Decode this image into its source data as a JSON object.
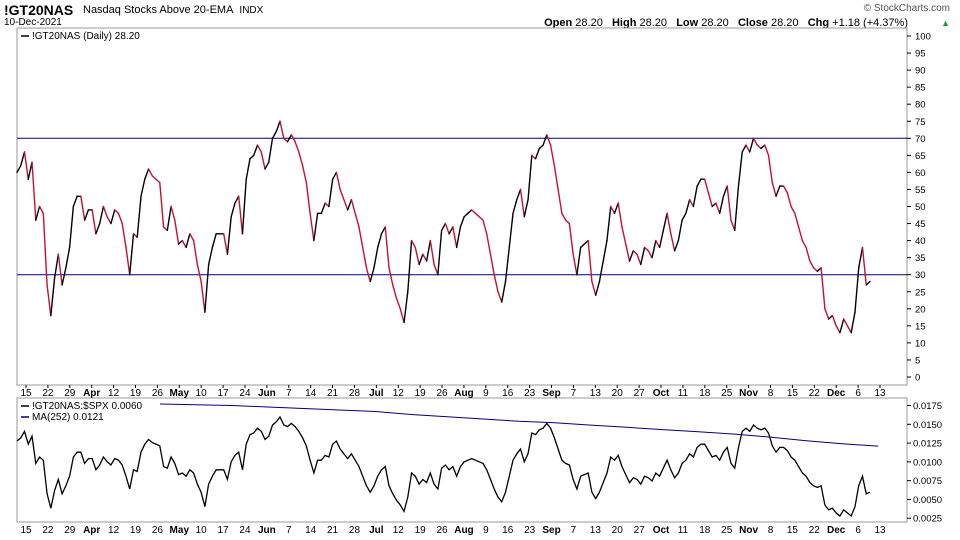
{
  "header": {
    "symbol": "!GT20NAS",
    "description": "Nasdaq Stocks Above 20-EMA",
    "exchange": "INDX",
    "date": "10-Dec-2021",
    "watermark": "© StockCharts.com",
    "open_label": "Open",
    "open": "28.20",
    "high_label": "High",
    "high": "28.20",
    "low_label": "Low",
    "low": "28.20",
    "close_label": "Close",
    "close": "28.20",
    "chg_label": "Chg",
    "chg": "+1.18 (+4.37%)"
  },
  "chart_data": [
    {
      "type": "line",
      "legend": "!GT20NAS (Daily) 28.20",
      "ylim": [
        0,
        100
      ],
      "yticks": [
        0,
        5,
        10,
        15,
        20,
        25,
        30,
        35,
        40,
        45,
        50,
        55,
        60,
        65,
        70,
        75,
        80,
        85,
        90,
        95,
        100
      ],
      "reference_lines": [
        70,
        30
      ],
      "colors": {
        "up": "#000000",
        "down": "#c8102e",
        "reference": "#000080"
      },
      "x_tick_labels": [
        "15",
        "22",
        "29",
        "Apr",
        "12",
        "19",
        "26",
        "May",
        "10",
        "17",
        "24",
        "Jun",
        "7",
        "14",
        "21",
        "28",
        "Jul",
        "12",
        "19",
        "26",
        "Aug",
        "9",
        "16",
        "23",
        "Sep",
        "7",
        "13",
        "20",
        "27",
        "Oct",
        "11",
        "18",
        "25",
        "Nov",
        "8",
        "15",
        "22",
        "Dec",
        "6",
        "13"
      ],
      "x_tick_bold": [
        "Apr",
        "May",
        "Jun",
        "Jul",
        "Aug",
        "Sep",
        "Oct",
        "Nov",
        "Dec"
      ],
      "values": [
        60,
        62,
        66,
        58,
        63,
        46,
        50,
        48,
        27,
        18,
        29,
        36,
        27,
        32,
        38,
        50,
        53,
        53,
        46,
        49,
        49,
        42,
        45,
        50,
        47,
        45,
        49,
        48,
        45,
        38,
        30,
        42,
        41,
        53,
        58,
        61,
        59,
        58,
        57,
        44,
        43,
        50,
        46,
        39,
        40,
        38,
        42,
        40,
        33,
        28,
        19,
        33,
        38,
        42,
        42,
        42,
        36,
        47,
        51,
        53,
        42,
        58,
        64,
        65,
        68,
        66,
        61,
        63,
        70,
        72,
        75,
        70,
        69,
        71,
        69,
        66,
        62,
        57,
        48,
        40,
        48,
        48,
        51,
        50,
        58,
        60,
        55,
        52,
        49,
        52,
        48,
        44,
        38,
        32,
        28,
        32,
        38,
        42,
        44,
        32,
        27,
        23,
        20,
        16,
        25,
        40,
        38,
        33,
        36,
        34,
        40,
        33,
        30,
        43,
        45,
        42,
        44,
        38,
        44,
        47,
        48,
        49,
        48,
        47,
        46,
        42,
        36,
        30,
        25,
        22,
        28,
        38,
        48,
        52,
        55,
        47,
        52,
        65,
        64,
        67,
        68,
        71,
        68,
        62,
        55,
        48,
        46,
        45,
        36,
        30,
        38,
        39,
        40,
        28,
        24,
        28,
        34,
        40,
        50,
        48,
        51,
        44,
        39,
        34,
        37,
        36,
        33,
        38,
        37,
        35,
        40,
        38,
        43,
        48,
        42,
        37,
        40,
        46,
        48,
        52,
        50,
        56,
        58,
        58,
        54,
        50,
        51,
        48,
        53,
        56,
        46,
        43,
        56,
        66,
        68,
        66,
        70,
        68,
        67,
        68,
        65,
        57,
        53,
        56,
        56,
        54,
        50,
        48,
        44,
        40,
        38,
        34,
        32,
        31,
        32,
        20,
        17,
        18,
        15,
        13,
        17,
        15,
        13,
        19,
        32,
        38,
        27,
        28
      ]
    },
    {
      "type": "line",
      "legend_series": "!GT20NAS:$SPX 0.0060",
      "legend_ma": "MA(252) 0.0121",
      "ylim": [
        0.002,
        0.0185
      ],
      "yticks": [
        "0.0025",
        "0.0050",
        "0.0075",
        "0.0100",
        "0.0125",
        "0.0150",
        "0.0175"
      ],
      "colors": {
        "ratio": "#000000",
        "ma": "#000080"
      },
      "ma_values": [
        0.0177,
        0.0176,
        0.0175,
        0.0173,
        0.0171,
        0.0169,
        0.0167,
        0.0163,
        0.016,
        0.0157,
        0.0154,
        0.0152,
        0.0149,
        0.0146,
        0.0143,
        0.014,
        0.0137,
        0.0133,
        0.0128,
        0.0124,
        0.0121
      ],
      "values": "ratio of primary series to $SPX, scaled ≈ value × 0.000213"
    }
  ]
}
